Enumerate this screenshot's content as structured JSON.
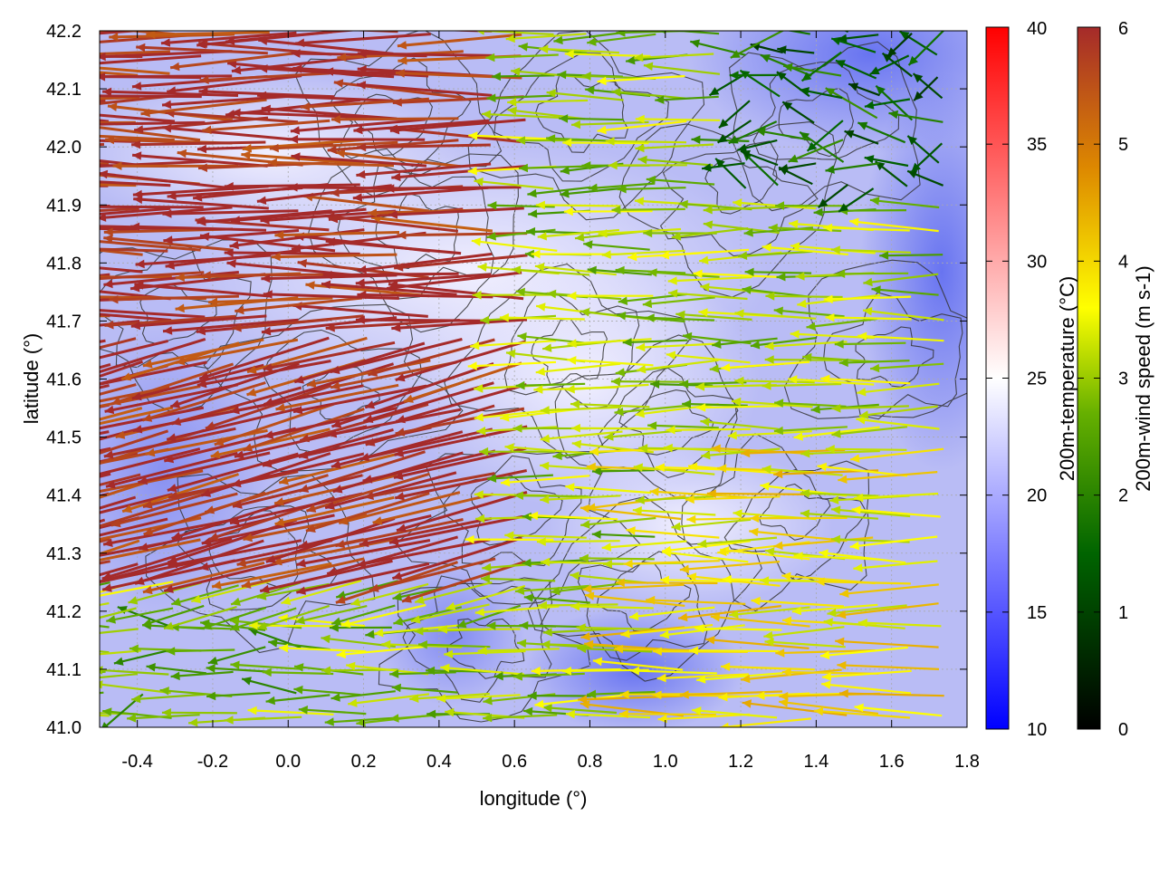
{
  "chart_data": {
    "type": "vector-field",
    "xlabel": "longitude (°)",
    "ylabel": "latitude (°)",
    "xlim": [
      -0.5,
      1.8
    ],
    "ylim": [
      41.0,
      42.2
    ],
    "x_ticks": [
      "-0.4",
      "-0.2",
      "0.0",
      "0.2",
      "0.4",
      "0.6",
      "0.8",
      "1.0",
      "1.2",
      "1.4",
      "1.6",
      "1.8"
    ],
    "y_ticks": [
      "41.0",
      "41.1",
      "41.2",
      "41.3",
      "41.4",
      "41.5",
      "41.6",
      "41.7",
      "41.8",
      "41.9",
      "42.0",
      "42.1",
      "42.2"
    ],
    "grid": true,
    "background_field": {
      "name": "200m-temperature",
      "unit_label": "200m-temperature (°C)",
      "range": [
        10,
        40
      ],
      "ticks": [
        "10",
        "15",
        "20",
        "25",
        "30",
        "35",
        "40"
      ],
      "colors": [
        "#0000ff",
        "#ffffff",
        "#ff0000"
      ]
    },
    "vector_field": {
      "name": "200m-wind speed",
      "unit_label": "200m-wind speed (m s-1)",
      "range": [
        0,
        6
      ],
      "ticks": [
        "0",
        "1",
        "2",
        "3",
        "4",
        "5",
        "6"
      ],
      "colors": [
        "#000000",
        "#006400",
        "#66b000",
        "#ffff00",
        "#dd8800",
        "#a52a2a"
      ],
      "regions": [
        {
          "name": "west-strong-flow",
          "lon": [
            -0.5,
            0.7
          ],
          "lat": [
            41.25,
            42.2
          ],
          "speed": 6,
          "direction": "from-east"
        },
        {
          "name": "south-east-flow",
          "lon": [
            1.0,
            1.8
          ],
          "lat": [
            41.0,
            41.5
          ],
          "speed": 3.8,
          "direction": "from-east"
        },
        {
          "name": "north-east-weak",
          "lon": [
            1.2,
            1.8
          ],
          "lat": [
            41.9,
            42.2
          ],
          "speed": 1.5,
          "direction": "from-east"
        },
        {
          "name": "south-west-weak",
          "lon": [
            -0.5,
            0.1
          ],
          "lat": [
            41.0,
            41.2
          ],
          "speed": 2.5,
          "direction": "variable"
        }
      ]
    },
    "contours": "terrain-elevation"
  }
}
